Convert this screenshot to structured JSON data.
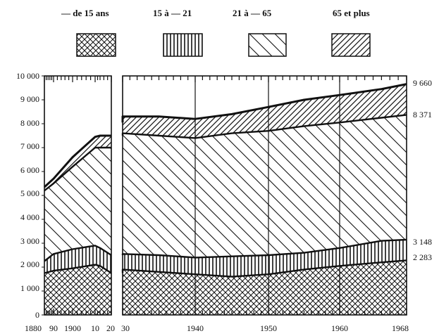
{
  "chart_data": {
    "type": "area",
    "stacked": true,
    "x_unit": "year",
    "y_range": [
      0,
      10000
    ],
    "legend_position": "top",
    "y_ticks": [
      "0",
      "1 000",
      "2 000",
      "3 000",
      "4 000",
      "5 000",
      "6 000",
      "7 000",
      "8 000",
      "9 000",
      "10 000"
    ],
    "x_tick_labels": [
      "1880",
      "90",
      "1900",
      "10",
      "20",
      "30",
      "1940",
      "1950",
      "1960",
      "1968"
    ],
    "end_labels": [
      "9 660",
      "8 371",
      "3 148",
      "2 283"
    ],
    "series": [
      {
        "name": "— de 15 ans",
        "pattern": "crosshatch",
        "panels": [
          {
            "x": [
              1880,
              1890,
              1900,
              1910,
              1914,
              1920
            ],
            "values": [
              1750,
              1850,
              1950,
              2100,
              2050,
              1750
            ]
          },
          {
            "x": [
              1920,
              1930,
              1935,
              1940,
              1945,
              1950,
              1955,
              1960,
              1965,
              1968
            ],
            "values": [
              1750,
              1900,
              1800,
              1700,
              1600,
              1700,
              1900,
              2050,
              2200,
              2283
            ]
          }
        ]
      },
      {
        "name": "15 à — 21",
        "pattern": "vertical",
        "panels": [
          {
            "x": [
              1880,
              1890,
              1900,
              1910,
              1914,
              1920
            ],
            "values": [
              2250,
              2550,
              2750,
              2900,
              2800,
              2500
            ]
          },
          {
            "x": [
              1920,
              1930,
              1935,
              1940,
              1945,
              1950,
              1955,
              1960,
              1965,
              1968
            ],
            "values": [
              2500,
              2550,
              2500,
              2400,
              2450,
              2500,
              2600,
              2800,
              3100,
              3148
            ]
          }
        ]
      },
      {
        "name": "21 à — 65",
        "pattern": "diagonal-back",
        "panels": [
          {
            "x": [
              1880,
              1890,
              1900,
              1910,
              1914,
              1920
            ],
            "values": [
              5200,
              5500,
              6200,
              7000,
              7000,
              7000
            ]
          },
          {
            "x": [
              1920,
              1930,
              1935,
              1940,
              1945,
              1950,
              1955,
              1960,
              1965,
              1968
            ],
            "values": [
              7500,
              7600,
              7500,
              7400,
              7600,
              7700,
              7900,
              8050,
              8250,
              8371
            ]
          }
        ]
      },
      {
        "name": "65 et plus",
        "pattern": "diagonal-forward",
        "panels": [
          {
            "x": [
              1880,
              1890,
              1900,
              1910,
              1914,
              1920
            ],
            "values": [
              5350,
              5700,
              6600,
              7450,
              7500,
              7500
            ]
          },
          {
            "x": [
              1920,
              1930,
              1935,
              1940,
              1945,
              1950,
              1955,
              1960,
              1965,
              1968
            ],
            "values": [
              8050,
              8300,
              8300,
              8200,
              8400,
              8700,
              9000,
              9200,
              9450,
              9660
            ]
          }
        ]
      }
    ]
  }
}
